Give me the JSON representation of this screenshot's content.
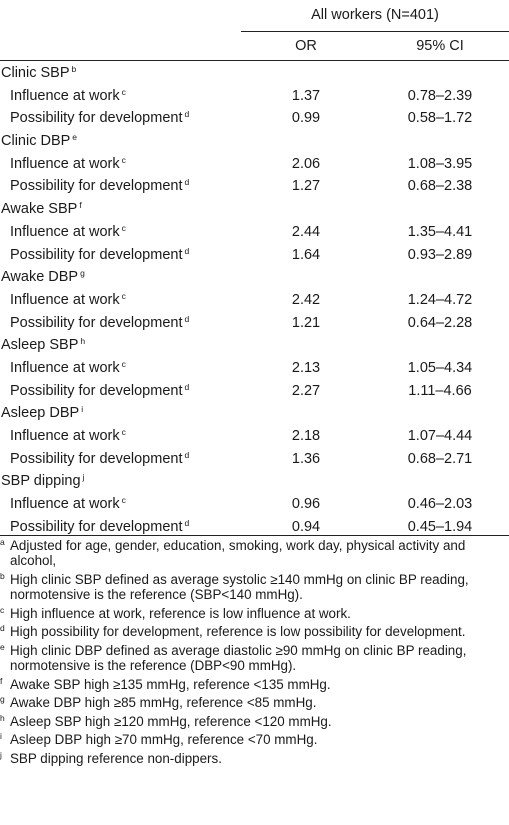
{
  "header": {
    "group_label": "All workers (N=401)",
    "col_or": "OR",
    "col_ci": "95% CI"
  },
  "rows": [
    {
      "type": "group",
      "label": "Clinic SBP",
      "sup": "b"
    },
    {
      "type": "item",
      "label": "Influence at work",
      "sup": "c",
      "or": "1.37",
      "ci": "0.78–2.39"
    },
    {
      "type": "item",
      "label": "Possibility for development",
      "sup": "d",
      "or": "0.99",
      "ci": "0.58–1.72"
    },
    {
      "type": "group",
      "label": "Clinic DBP",
      "sup": "e"
    },
    {
      "type": "item",
      "label": "Influence at work",
      "sup": "c",
      "or": "2.06",
      "ci": "1.08–3.95"
    },
    {
      "type": "item",
      "label": "Possibility for development",
      "sup": "d",
      "or": "1.27",
      "ci": "0.68–2.38"
    },
    {
      "type": "group",
      "label": "Awake SBP",
      "sup": "f"
    },
    {
      "type": "item",
      "label": "Influence at work",
      "sup": "c",
      "or": "2.44",
      "ci": "1.35–4.41"
    },
    {
      "type": "item",
      "label": "Possibility for development",
      "sup": "d",
      "or": "1.64",
      "ci": "0.93–2.89"
    },
    {
      "type": "group",
      "label": "Awake DBP",
      "sup": "g"
    },
    {
      "type": "item",
      "label": "Influence at work",
      "sup": "c",
      "or": "2.42",
      "ci": "1.24–4.72"
    },
    {
      "type": "item",
      "label": "Possibility for development",
      "sup": "d",
      "or": "1.21",
      "ci": "0.64–2.28"
    },
    {
      "type": "group",
      "label": "Asleep SBP",
      "sup": "h"
    },
    {
      "type": "item",
      "label": "Influence at work",
      "sup": "c",
      "or": "2.13",
      "ci": "1.05–4.34"
    },
    {
      "type": "item",
      "label": "Possibility for development",
      "sup": "d",
      "or": "2.27",
      "ci": "1.11–4.66"
    },
    {
      "type": "group",
      "label": "Asleep DBP",
      "sup": "i"
    },
    {
      "type": "item",
      "label": "Influence at work",
      "sup": "c",
      "or": "2.18",
      "ci": "1.07–4.44"
    },
    {
      "type": "item",
      "label": "Possibility for development",
      "sup": "d",
      "or": "1.36",
      "ci": "0.68–2.71"
    },
    {
      "type": "group",
      "label": "SBP dipping",
      "sup": "j"
    },
    {
      "type": "item",
      "label": "Influence at work",
      "sup": "c",
      "or": "0.96",
      "ci": "0.46–2.03"
    },
    {
      "type": "item",
      "label": "Possibility for development",
      "sup": "d",
      "or": "0.94",
      "ci": "0.45–1.94"
    }
  ],
  "footnotes": [
    {
      "mark": "a",
      "text": "Adjusted for age, gender, education, smoking, work day, physical activity and alcohol,"
    },
    {
      "mark": "b",
      "text": "High clinic SBP defined as average systolic ≥140 mmHg on clinic BP reading, normotensive is the reference (SBP<140 mmHg)."
    },
    {
      "mark": "c",
      "text": "High influence at work, reference is low influence at work."
    },
    {
      "mark": "d",
      "text": "High possibility for development, reference is low possibility for development."
    },
    {
      "mark": "e",
      "text": "High clinic DBP defined as average diastolic ≥90 mmHg on clinic BP reading, normotensive is the reference (DBP<90 mmHg)."
    },
    {
      "mark": "f",
      "text": "Awake SBP high ≥135 mmHg, reference <135 mmHg."
    },
    {
      "mark": "g",
      "text": "Awake DBP high ≥85 mmHg, reference <85 mmHg."
    },
    {
      "mark": "h",
      "text": "Asleep SBP high ≥120 mmHg, reference <120 mmHg."
    },
    {
      "mark": "i",
      "text": "Asleep DBP high ≥70 mmHg, reference <70 mmHg."
    },
    {
      "mark": "j",
      "text": "SBP dipping reference non-dippers."
    }
  ]
}
